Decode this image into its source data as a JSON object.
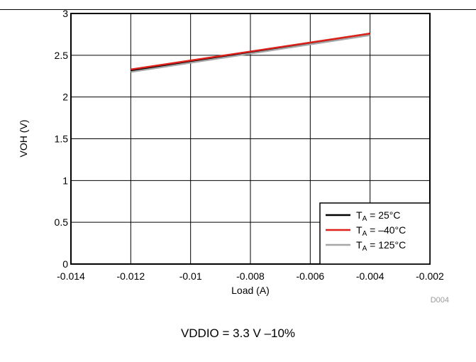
{
  "chart_data": {
    "type": "line",
    "xlabel": "Load (A)",
    "ylabel": "VOH (V)",
    "xlim": [
      -0.014,
      -0.002
    ],
    "ylim": [
      0,
      3
    ],
    "x_ticks": [
      "-0.014",
      "-0.012",
      "-0.01",
      "-0.008",
      "-0.006",
      "-0.004",
      "-0.002"
    ],
    "y_ticks": [
      "0",
      "0.5",
      "1",
      "1.5",
      "2",
      "2.5",
      "3"
    ],
    "grid": true,
    "legend_position": "bottom-right",
    "series": [
      {
        "name_main": "T",
        "name_sub": "A",
        "name_rest": " = 25°C",
        "color": "#000000",
        "x": [
          -0.012,
          -0.004
        ],
        "y": [
          2.32,
          2.76
        ]
      },
      {
        "name_main": "T",
        "name_sub": "A",
        "name_rest": " = –40°C",
        "color": "#e0211a",
        "x": [
          -0.012,
          -0.004
        ],
        "y": [
          2.33,
          2.76
        ]
      },
      {
        "name_main": "T",
        "name_sub": "A",
        "name_rest": " = 125°C",
        "color": "#a6a6a6",
        "x": [
          -0.012,
          -0.004
        ],
        "y": [
          2.3,
          2.74
        ]
      }
    ],
    "figure_id": "D004"
  },
  "caption": "VDDIO = 3.3 V –10%"
}
